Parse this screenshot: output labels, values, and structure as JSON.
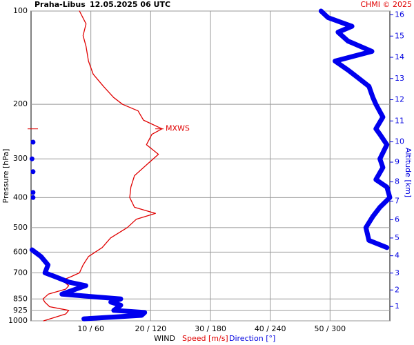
{
  "chart_data": {
    "type": "line",
    "title": "Praha-Libus",
    "subtitle": "12.05.2025 06 UTC",
    "credit": "CHMI © 2025",
    "ylabel": "Pressure [hPa]",
    "y2label": "Altitude [km]",
    "xlabel": "WIND",
    "xlabel_speed": "Speed [m/s]",
    "xlabel_direction": "Direction [°]",
    "log_y": true,
    "grid": true,
    "ylim": [
      1000,
      100
    ],
    "yticks": [
      100,
      200,
      300,
      400,
      500,
      600,
      700,
      850,
      925,
      1000
    ],
    "xlim": [
      0,
      60
    ],
    "x2lim": [
      0,
      360
    ],
    "xticks": [
      {
        "value": 10,
        "label": "10 / 60"
      },
      {
        "value": 20,
        "label": "20 / 120"
      },
      {
        "value": 30,
        "label": "30 / 180"
      },
      {
        "value": 40,
        "label": "40 / 240"
      },
      {
        "value": 50,
        "label": "50 / 300"
      }
    ],
    "y2ticks": [
      1,
      2,
      3,
      4,
      5,
      6,
      7,
      8,
      9,
      10,
      11,
      12,
      13,
      14,
      15,
      16
    ],
    "y2color": "#0000e0",
    "annotations": [
      {
        "text": "MXWS",
        "pressure": 240,
        "color": "#e00000"
      }
    ],
    "series": [
      {
        "name": "Speed [m/s]",
        "color": "#e00000",
        "width": 1.3,
        "pressure": [
          1000,
          950,
          925,
          900,
          870,
          850,
          820,
          790,
          770,
          740,
          720,
          700,
          660,
          620,
          580,
          540,
          500,
          470,
          450,
          430,
          400,
          370,
          340,
          310,
          290,
          270,
          250,
          240,
          225,
          210,
          200,
          190,
          175,
          160,
          145,
          130,
          120,
          110,
          100
        ],
        "values": [
          2.1,
          5.8,
          6.3,
          3.1,
          2.3,
          2.0,
          2.9,
          5.8,
          6.3,
          5.2,
          6.7,
          8.1,
          8.7,
          9.6,
          11.9,
          13.3,
          16.1,
          17.6,
          20.8,
          17.3,
          16.5,
          16.7,
          17.3,
          19.6,
          21.3,
          19.3,
          20.2,
          21.9,
          18.8,
          17.9,
          15.3,
          13.8,
          12.1,
          10.4,
          9.6,
          9.2,
          8.7,
          9.2,
          8.1
        ]
      },
      {
        "name": "Direction [°]",
        "color": "#0000ee",
        "width": 7,
        "axis": "x2",
        "pressure": [
          985,
          960,
          940,
          925,
          890,
          870,
          850,
          820,
          790,
          770,
          750,
          720,
          700,
          660,
          620,
          590,
          null,
          400,
          null,
          385,
          null,
          330,
          null,
          300,
          null,
          265,
          null,
          580,
          550,
          500,
          460,
          430,
          400,
          370,
          350,
          320,
          300,
          270,
          250,
          240,
          220,
          200,
          190,
          175,
          165,
          155,
          145,
          135,
          125,
          117,
          112,
          105,
          100
        ],
        "values": [
          53,
          111,
          114,
          83,
          90,
          80,
          90,
          31,
          45,
          55,
          38,
          24,
          14,
          17,
          10,
          1,
          null,
          2,
          null,
          2,
          null,
          2,
          null,
          1,
          null,
          2,
          null,
          357,
          339,
          336,
          343,
          350,
          360,
          357,
          346,
          353,
          350,
          357,
          350,
          346,
          353,
          346,
          343,
          339,
          329,
          318,
          305,
          342,
          318,
          308,
          322,
          298,
          291
        ]
      }
    ]
  }
}
